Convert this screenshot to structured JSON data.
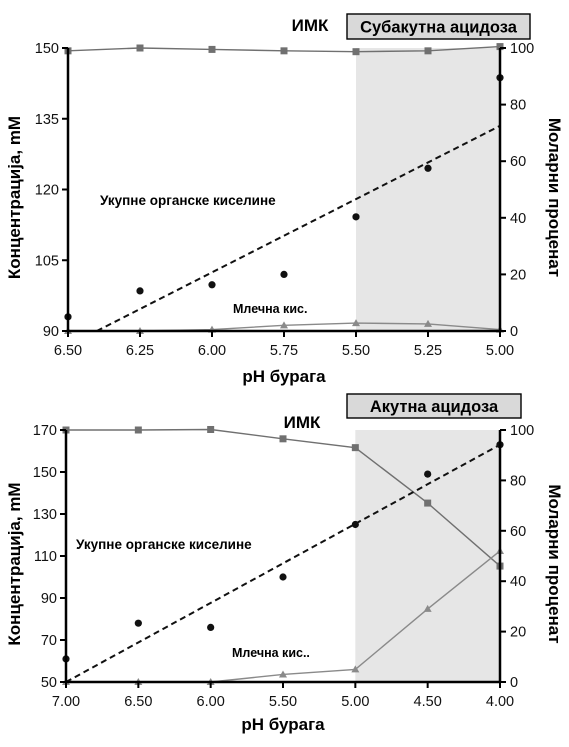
{
  "chart_data": [
    {
      "type": "line",
      "title": "ИМК",
      "region_label": "Субакутна ацидоза",
      "xlabel": "pH бурага",
      "ylabel_left": "Концентрација, mM",
      "ylabel_right": "Моларни проценат",
      "x_ticks": [
        "6.50",
        "6.25",
        "6.00",
        "5.75",
        "5.50",
        "5.25",
        "5.00"
      ],
      "xlim": [
        6.5,
        5.0
      ],
      "ylim_left": [
        90,
        150
      ],
      "y_ticks_left": [
        "90",
        "105",
        "120",
        "135",
        "150"
      ],
      "ylim_right": [
        0,
        100
      ],
      "y_ticks_right": [
        "0",
        "20",
        "40",
        "60",
        "80",
        "100"
      ],
      "shaded_region": [
        5.5,
        5.0
      ],
      "annotations": {
        "total_acids": "Укупне органске киселине",
        "lactic": "Млечна кис."
      },
      "series": [
        {
          "axis": "right",
          "marker": "square",
          "style": "solid",
          "color": "#707070",
          "x": [
            6.5,
            6.25,
            6.0,
            5.75,
            5.5,
            5.25,
            5.0
          ],
          "values": [
            99,
            100,
            99.5,
            99,
            98.7,
            99,
            100.5
          ]
        },
        {
          "axis": "right",
          "marker": "triangle",
          "style": "solid",
          "color": "#8a8a8a",
          "x": [
            6.5,
            6.25,
            6.0,
            5.75,
            5.5,
            5.25,
            5.0
          ],
          "values": [
            0,
            0,
            0.5,
            2,
            2.8,
            2.5,
            0.5
          ]
        },
        {
          "axis": "left",
          "marker": "dot",
          "style": "none",
          "color": "#111111",
          "x": [
            6.5,
            6.25,
            6.0,
            5.75,
            5.5,
            5.25,
            5.0
          ],
          "values": [
            93,
            98.5,
            99.8,
            102,
            114.2,
            124.5,
            143.7
          ]
        },
        {
          "axis": "left",
          "marker": "none",
          "style": "dashed",
          "color": "#111111",
          "x": [
            6.4,
            5.0
          ],
          "values": [
            90,
            133.5
          ]
        }
      ]
    },
    {
      "type": "line",
      "title": "ИМК",
      "region_label": "Акутна ацидоза",
      "xlabel": "pH бурага",
      "ylabel_left": "Концентрација, mM",
      "ylabel_right": "Моларни проценат",
      "x_ticks": [
        "7.00",
        "6.50",
        "6.00",
        "5.50",
        "5.00",
        "4.50",
        "4.00"
      ],
      "xlim": [
        7.0,
        4.0
      ],
      "ylim_left": [
        50,
        170
      ],
      "y_ticks_left": [
        "50",
        "70",
        "90",
        "110",
        "130",
        "150",
        "170"
      ],
      "ylim_right": [
        0,
        100
      ],
      "y_ticks_right": [
        "0",
        "20",
        "40",
        "60",
        "80",
        "100"
      ],
      "shaded_region": [
        5.0,
        4.0
      ],
      "annotations": {
        "total_acids": "Укупне органске киселине",
        "lactic": "Млечна кис.."
      },
      "series": [
        {
          "axis": "right",
          "marker": "square",
          "style": "solid",
          "color": "#707070",
          "x": [
            7.0,
            6.5,
            6.0,
            5.5,
            5.0,
            4.5,
            4.0
          ],
          "values": [
            100,
            100,
            100.2,
            96.5,
            93,
            71,
            46
          ]
        },
        {
          "axis": "right",
          "marker": "triangle",
          "style": "solid",
          "color": "#8a8a8a",
          "x": [
            7.0,
            6.5,
            6.0,
            5.5,
            5.0,
            4.5,
            4.0
          ],
          "values": [
            0,
            0,
            0,
            3,
            5,
            29,
            52
          ]
        },
        {
          "axis": "left",
          "marker": "dot",
          "style": "none",
          "color": "#111111",
          "x": [
            7.0,
            6.5,
            6.0,
            5.5,
            5.0,
            4.5,
            4.0
          ],
          "values": [
            61,
            78,
            76,
            100,
            125,
            149,
            163
          ]
        },
        {
          "axis": "left",
          "marker": "none",
          "style": "dashed",
          "color": "#111111",
          "x": [
            7.0,
            4.0
          ],
          "values": [
            50,
            163
          ]
        }
      ]
    }
  ]
}
